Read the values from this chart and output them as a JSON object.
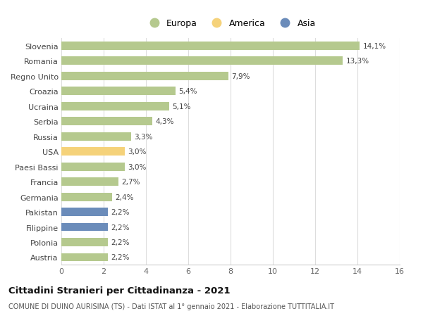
{
  "categories": [
    "Slovenia",
    "Romania",
    "Regno Unito",
    "Croazia",
    "Ucraina",
    "Serbia",
    "Russia",
    "USA",
    "Paesi Bassi",
    "Francia",
    "Germania",
    "Pakistan",
    "Filippine",
    "Polonia",
    "Austria"
  ],
  "values": [
    14.1,
    13.3,
    7.9,
    5.4,
    5.1,
    4.3,
    3.3,
    3.0,
    3.0,
    2.7,
    2.4,
    2.2,
    2.2,
    2.2,
    2.2
  ],
  "labels": [
    "14,1%",
    "13,3%",
    "7,9%",
    "5,4%",
    "5,1%",
    "4,3%",
    "3,3%",
    "3,0%",
    "3,0%",
    "2,7%",
    "2,4%",
    "2,2%",
    "2,2%",
    "2,2%",
    "2,2%"
  ],
  "colors": [
    "#b5c98e",
    "#b5c98e",
    "#b5c98e",
    "#b5c98e",
    "#b5c98e",
    "#b5c98e",
    "#b5c98e",
    "#f5d27a",
    "#b5c98e",
    "#b5c98e",
    "#b5c98e",
    "#6b8cba",
    "#6b8cba",
    "#b5c98e",
    "#b5c98e"
  ],
  "legend": [
    {
      "label": "Europa",
      "color": "#b5c98e"
    },
    {
      "label": "America",
      "color": "#f5d27a"
    },
    {
      "label": "Asia",
      "color": "#6b8cba"
    }
  ],
  "xlim": [
    0,
    16
  ],
  "xticks": [
    0,
    2,
    4,
    6,
    8,
    10,
    12,
    14,
    16
  ],
  "title": "Cittadini Stranieri per Cittadinanza - 2021",
  "subtitle": "COMUNE DI DUINO AURISINA (TS) - Dati ISTAT al 1° gennaio 2021 - Elaborazione TUTTITALIA.IT",
  "background_color": "#ffffff",
  "grid_color": "#dddddd",
  "bar_height": 0.55
}
